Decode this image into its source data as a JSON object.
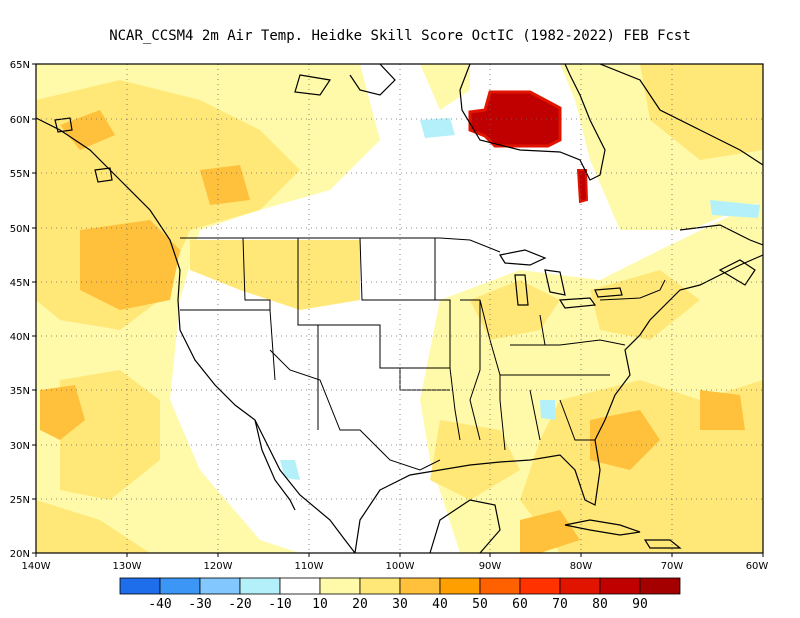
{
  "title": "NCAR_CCSM4  2m Air Temp. Heidke Skill Score OctIC (1982-2022) FEB Fcst",
  "map": {
    "lon_range": [
      -140,
      -60
    ],
    "lat_range": [
      20,
      65
    ],
    "lat_labels": [
      "20N",
      "25N",
      "30N",
      "35N",
      "40N",
      "45N",
      "50N",
      "55N",
      "60N",
      "65N"
    ],
    "lon_labels": [
      "140W",
      "130W",
      "120W",
      "110W",
      "100W",
      "90W",
      "80W",
      "70W",
      "60W"
    ],
    "gridlines": "dotted"
  },
  "colorbar": {
    "colors": [
      "#1e6eeb",
      "#3c96f5",
      "#82c8ff",
      "#b4f0fa",
      "#ffffff",
      "#fffaaa",
      "#ffe878",
      "#ffc03c",
      "#ffa000",
      "#ff6000",
      "#ff3200",
      "#e11400",
      "#c00000",
      "#a50000"
    ],
    "labels": [
      "-40",
      "-30",
      "-20",
      "-10",
      "10",
      "20",
      "30",
      "40",
      "50",
      "60",
      "70",
      "80",
      "90"
    ]
  }
}
